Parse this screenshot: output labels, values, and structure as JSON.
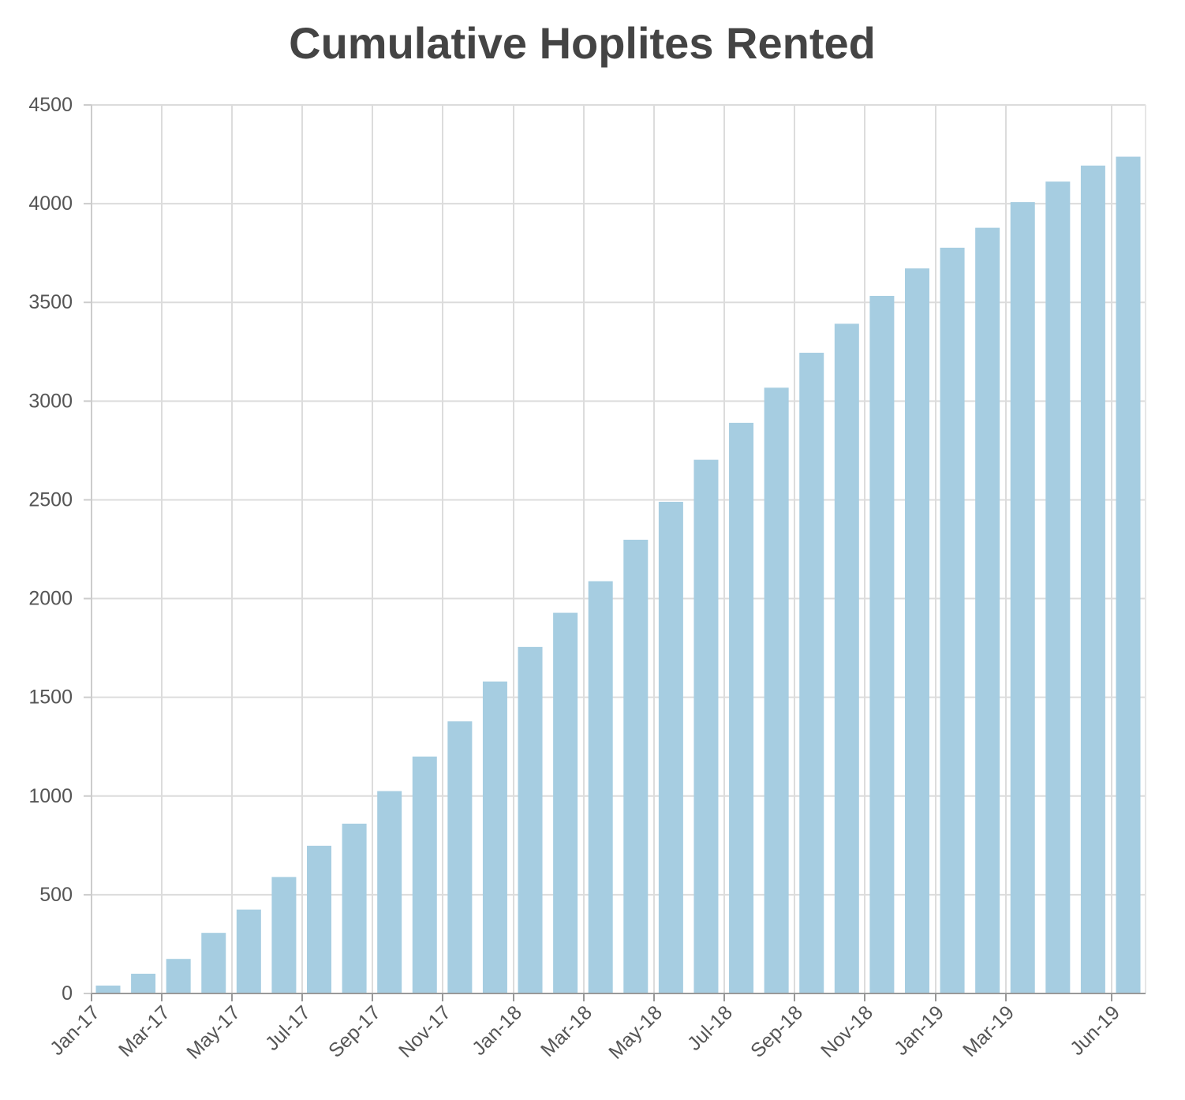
{
  "chart_data": {
    "type": "bar",
    "title": "Cumulative Hoplites Rented",
    "xlabel": "",
    "ylabel": "",
    "ylim": [
      0,
      4500
    ],
    "yticks": [
      0,
      500,
      1000,
      1500,
      2000,
      2500,
      3000,
      3500,
      4000,
      4500
    ],
    "grid": true,
    "bar_color": "#a6cde1",
    "categories": [
      "Jan-17",
      "Feb-17",
      "Mar-17",
      "Apr-17",
      "May-17",
      "Jun-17",
      "Jul-17",
      "Aug-17",
      "Sep-17",
      "Oct-17",
      "Nov-17",
      "Dec-17",
      "Jan-18",
      "Feb-18",
      "Mar-18",
      "Apr-18",
      "May-18",
      "Jun-18",
      "Jul-18",
      "Aug-18",
      "Sep-18",
      "Oct-18",
      "Nov-18",
      "Dec-18",
      "Jan-19",
      "Feb-19",
      "Mar-19",
      "Apr-19",
      "May-19",
      "Jun-19"
    ],
    "xtick_labels": [
      {
        "label": "Jan-17",
        "category": "Jan-17"
      },
      {
        "label": "Mar-17",
        "category": "Mar-17"
      },
      {
        "label": "May-17",
        "category": "May-17"
      },
      {
        "label": "Jul-17",
        "category": "Jul-17"
      },
      {
        "label": "Sep-17",
        "category": "Sep-17"
      },
      {
        "label": "Nov-17",
        "category": "Nov-17"
      },
      {
        "label": "Jan-18",
        "category": "Jan-18"
      },
      {
        "label": "Mar-18",
        "category": "Mar-18"
      },
      {
        "label": "May-18",
        "category": "May-18"
      },
      {
        "label": "Jul-18",
        "category": "Jul-18"
      },
      {
        "label": "Sep-18",
        "category": "Sep-18"
      },
      {
        "label": "Nov-18",
        "category": "Nov-18"
      },
      {
        "label": "Jan-19",
        "category": "Jan-19"
      },
      {
        "label": "Mar-19",
        "category": "Mar-19"
      },
      {
        "label": "Jun-19",
        "category": "Jun-19"
      }
    ],
    "values": [
      40,
      100,
      175,
      307,
      425,
      590,
      748,
      860,
      1025,
      1200,
      1378,
      1580,
      1755,
      1928,
      2088,
      2298,
      2490,
      2703,
      2890,
      3068,
      3245,
      3392,
      3533,
      3672,
      3777,
      3878,
      4008,
      4112,
      4193,
      4238
    ]
  }
}
